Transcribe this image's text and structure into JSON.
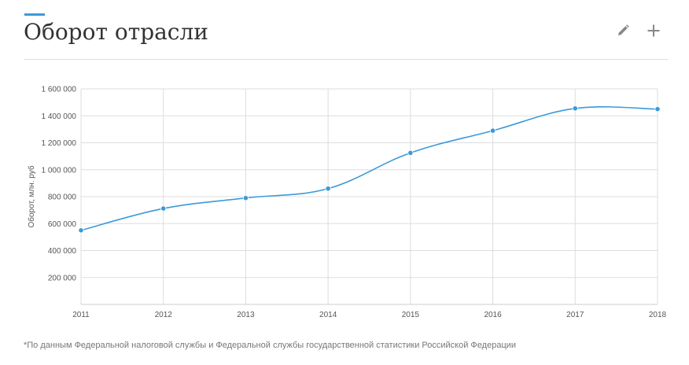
{
  "header": {
    "title": "Оборот отрасли",
    "edit_icon": "pencil-icon",
    "add_icon": "plus-icon"
  },
  "colors": {
    "accent": "#3a9ad9",
    "line": "#3a9ad9",
    "grid": "#dddddd"
  },
  "chart_data": {
    "type": "line",
    "title": "",
    "xlabel": "",
    "ylabel": "Оборот, млн. руб",
    "categories": [
      "2011",
      "2012",
      "2013",
      "2014",
      "2015",
      "2016",
      "2017",
      "2018"
    ],
    "series": [
      {
        "values": [
          550000,
          712000,
          790000,
          860000,
          1125000,
          1290000,
          1455000,
          1450000
        ]
      }
    ],
    "ylim": [
      0,
      1600000
    ],
    "yticks": [
      200000,
      400000,
      600000,
      800000,
      1000000,
      1200000,
      1400000,
      1600000
    ],
    "ytick_labels": [
      "200 000",
      "400 000",
      "600 000",
      "800 000",
      "1 000 000",
      "1 200 000",
      "1 400 000",
      "1 600 000"
    ],
    "grid": true,
    "legend": "none"
  },
  "footnote": "*По данным Федеральной налоговой службы и Федеральной службы государственной статистики Российской Федерации"
}
